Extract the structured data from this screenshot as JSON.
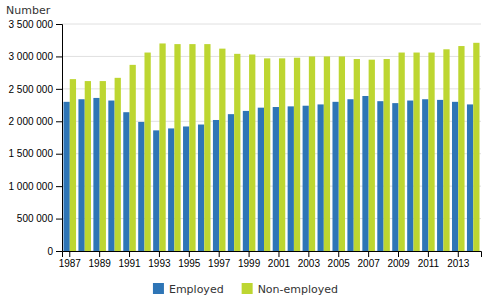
{
  "chart_data": {
    "type": "bar",
    "y_label": "Number",
    "categories": [
      "1987",
      null,
      "1989",
      null,
      "1991",
      null,
      "1993",
      null,
      "1995",
      null,
      "1997",
      null,
      "1999",
      null,
      "2001",
      null,
      "2003",
      null,
      "2005",
      null,
      "2007",
      null,
      "2009",
      null,
      "2011",
      null,
      "2013",
      null
    ],
    "series": [
      {
        "name": "Employed",
        "color": "#2e75b6",
        "values": [
          2300000,
          2340000,
          2360000,
          2320000,
          2140000,
          1990000,
          1860000,
          1890000,
          1920000,
          1950000,
          2020000,
          2110000,
          2160000,
          2210000,
          2220000,
          2230000,
          2240000,
          2260000,
          2300000,
          2340000,
          2390000,
          2310000,
          2280000,
          2320000,
          2340000,
          2330000,
          2300000,
          2260000
        ]
      },
      {
        "name": "Non-employed",
        "color": "#bdd631",
        "values": [
          2650000,
          2620000,
          2620000,
          2670000,
          2870000,
          3060000,
          3200000,
          3190000,
          3190000,
          3190000,
          3120000,
          3040000,
          3030000,
          2970000,
          2970000,
          2980000,
          3000000,
          3000000,
          3000000,
          2960000,
          2950000,
          2960000,
          3060000,
          3060000,
          3060000,
          3110000,
          3160000,
          3210000
        ]
      }
    ],
    "ylim": [
      0,
      3500000
    ],
    "yticks": [
      0,
      {
        "value": 500000,
        "label": "500 000"
      },
      {
        "value": 1000000,
        "label": "1 000 000"
      },
      {
        "value": 1500000,
        "label": "1 500 000"
      },
      {
        "value": 2000000,
        "label": "2 000 000"
      },
      {
        "value": 2500000,
        "label": "2 500 000"
      },
      {
        "value": 3000000,
        "label": "3 000 000"
      },
      {
        "value": 3500000,
        "label": "3 500 000"
      }
    ],
    "grid": true,
    "legend": "bottom"
  }
}
